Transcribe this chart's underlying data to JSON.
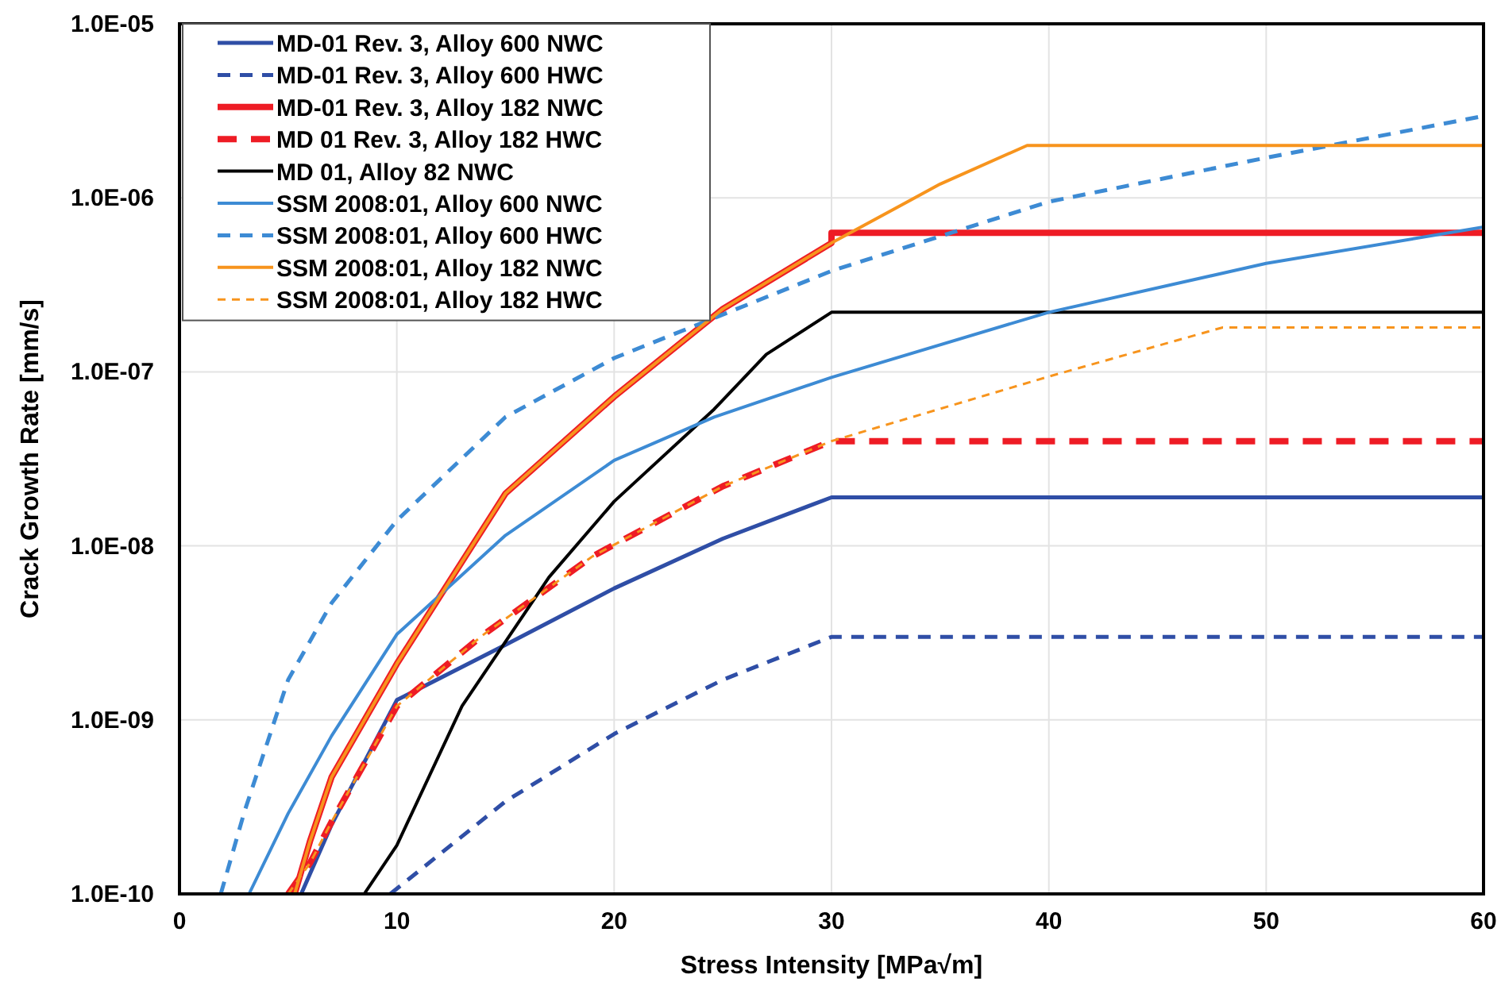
{
  "chart_data": {
    "type": "line",
    "xlabel": "Stress Intensity [MPa√m]",
    "ylabel": "Crack Growth Rate [mm/s]",
    "xlim": [
      0,
      60
    ],
    "xticks": [
      0,
      10,
      20,
      30,
      40,
      50,
      60
    ],
    "ylim": [
      1e-10,
      1e-05
    ],
    "yticks": [
      {
        "value": 1e-10,
        "label": "1.0E-10"
      },
      {
        "value": 1e-09,
        "label": "1.0E-09"
      },
      {
        "value": 1e-08,
        "label": "1.0E-08"
      },
      {
        "value": 1e-07,
        "label": "1.0E-07"
      },
      {
        "value": 1e-06,
        "label": "1.0E-06"
      },
      {
        "value": 1e-05,
        "label": "1.0E-05"
      }
    ],
    "log": "y",
    "grid": true,
    "legend": "top left",
    "marker": "none",
    "series": [
      {
        "name": "MD-01 Rev. 3, Alloy 600 NWC",
        "color": "#2f4ea6",
        "line_style": "solid",
        "x": [
          5.6,
          7,
          10,
          15,
          20,
          25,
          30,
          60
        ],
        "values": [
          1e-10,
          2.5e-10,
          1.3e-09,
          2.7e-09,
          5.7e-09,
          1.1e-08,
          1.9e-08,
          1.9e-08
        ]
      },
      {
        "name": "MD-01 Rev. 3, Alloy 600 HWC",
        "color": "#2f4ea6",
        "line_style": "dashed",
        "x": [
          9.7,
          15,
          20,
          25,
          30,
          60
        ],
        "values": [
          1e-10,
          3.4e-10,
          8.3e-10,
          1.7e-09,
          3e-09,
          3e-09
        ]
      },
      {
        "name": "MD-01 Rev. 3, Alloy 182 NWC",
        "color": "#ee1c25",
        "line_style": "solid",
        "x": [
          5.3,
          6,
          7,
          10,
          15,
          20,
          25,
          30,
          30,
          60
        ],
        "values": [
          1e-10,
          2e-10,
          4.7e-10,
          2.1e-09,
          2e-08,
          7.2e-08,
          2.3e-07,
          5.5e-07,
          6.3e-07,
          6.3e-07
        ]
      },
      {
        "name": "MD 01 Rev. 3, Alloy 182 HWC",
        "color": "#ee1c25",
        "line_style": "dashed",
        "x": [
          5,
          6,
          7,
          10,
          14,
          19,
          25,
          30,
          60
        ],
        "values": [
          1e-10,
          1.5e-10,
          2.6e-10,
          1.2e-09,
          3.1e-09,
          8.7e-09,
          2.2e-08,
          4e-08,
          4e-08
        ]
      },
      {
        "name": "MD 01, Alloy 82 NWC",
        "color": "#000000",
        "line_style": "solid",
        "x": [
          8.5,
          10,
          13,
          17,
          20,
          24.6,
          27,
          30,
          60
        ],
        "values": [
          1e-10,
          1.9e-10,
          1.2e-09,
          6.6e-09,
          1.8e-08,
          6.1e-08,
          1.26e-07,
          2.2e-07,
          2.2e-07
        ]
      },
      {
        "name": "SSM 2008:01, Alloy 600 NWC",
        "color": "#3d8bd4",
        "line_style": "solid",
        "x": [
          3.2,
          5,
          7,
          10,
          15,
          20,
          24.6,
          30,
          40,
          50,
          60
        ],
        "values": [
          1e-10,
          2.9e-10,
          8.1e-10,
          3.1e-09,
          1.15e-08,
          3.1e-08,
          5.5e-08,
          9.3e-08,
          2.2e-07,
          4.2e-07,
          6.8e-07
        ]
      },
      {
        "name": "SSM 2008:01, Alloy 600 HWC",
        "color": "#3d8bd4",
        "line_style": "dashed",
        "x": [
          1.9,
          3,
          5,
          7,
          10,
          15,
          20,
          30,
          40,
          50,
          60
        ],
        "values": [
          1e-10,
          3e-10,
          1.7e-09,
          4.7e-09,
          1.4e-08,
          5.5e-08,
          1.2e-07,
          3.8e-07,
          9.5e-07,
          1.7e-06,
          2.95e-06
        ]
      },
      {
        "name": "SSM 2008:01, Alloy 182 NWC",
        "color": "#f7941d",
        "line_style": "solid",
        "x": [
          5.3,
          6,
          7,
          10,
          15,
          20,
          25,
          30,
          35,
          39,
          60
        ],
        "values": [
          1e-10,
          2e-10,
          4.7e-10,
          2.1e-09,
          2e-08,
          7.2e-08,
          2.3e-07,
          5.5e-07,
          1.2e-06,
          2e-06,
          2e-06
        ]
      },
      {
        "name": "SSM 2008:01, Alloy 182 HWC",
        "color": "#f7941d",
        "line_style": "dashed",
        "x": [
          5,
          6,
          7,
          10,
          14,
          19,
          25,
          30,
          40,
          48,
          60
        ],
        "values": [
          1e-10,
          1.5e-10,
          2.6e-10,
          1.2e-09,
          3.1e-09,
          8.7e-09,
          2.2e-08,
          4e-08,
          9.4e-08,
          1.8e-07,
          1.8e-07
        ]
      }
    ]
  }
}
